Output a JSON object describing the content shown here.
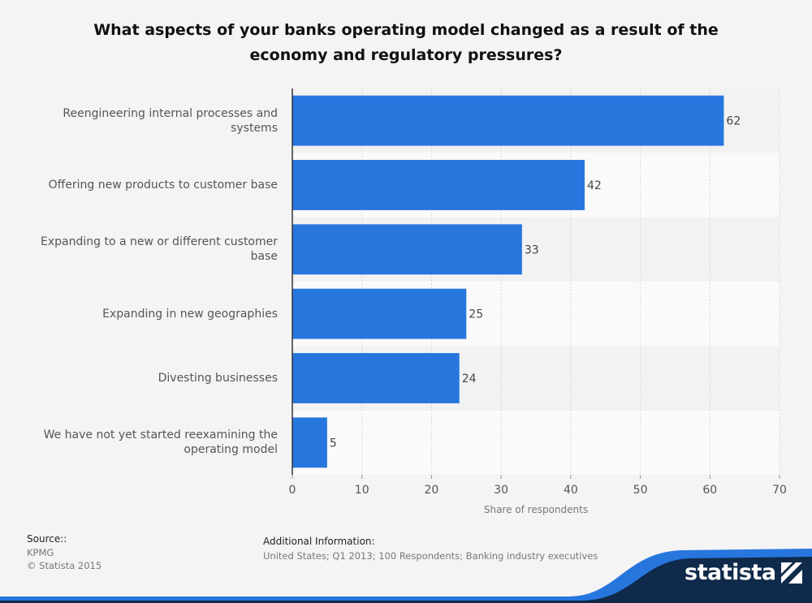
{
  "chart_data": {
    "type": "bar",
    "orientation": "horizontal",
    "title": "What aspects of your banks operating model changed as a result of the economy and regulatory pressures?",
    "xlabel": "Share of respondents",
    "ylabel": "",
    "categories": [
      "Reengineering internal processes and systems",
      "Offering new products to customer base",
      "Expanding to a new or different customer base",
      "Expanding in new geographies",
      "Divesting businesses",
      "We have not yet started reexamining the operating model"
    ],
    "values": [
      62,
      42,
      33,
      25,
      24,
      5
    ],
    "xlim": [
      0,
      70
    ],
    "xticks": [
      0,
      10,
      20,
      30,
      40,
      50,
      60,
      70
    ],
    "grid": true,
    "bar_color": "#2776de",
    "band_colors": [
      "#f2f2f2",
      "#fafafa"
    ]
  },
  "footer": {
    "source_title": "Source::",
    "source_value": "KPMG",
    "copyright": "© Statista 2015",
    "additional_title": "Additional Information:",
    "additional_value": "United States; Q1 2013; 100 Respondents; Banking industry executives"
  },
  "brand": {
    "name": "statista",
    "colors": {
      "dark": "#0f2a4a",
      "accent": "#2776de"
    }
  }
}
